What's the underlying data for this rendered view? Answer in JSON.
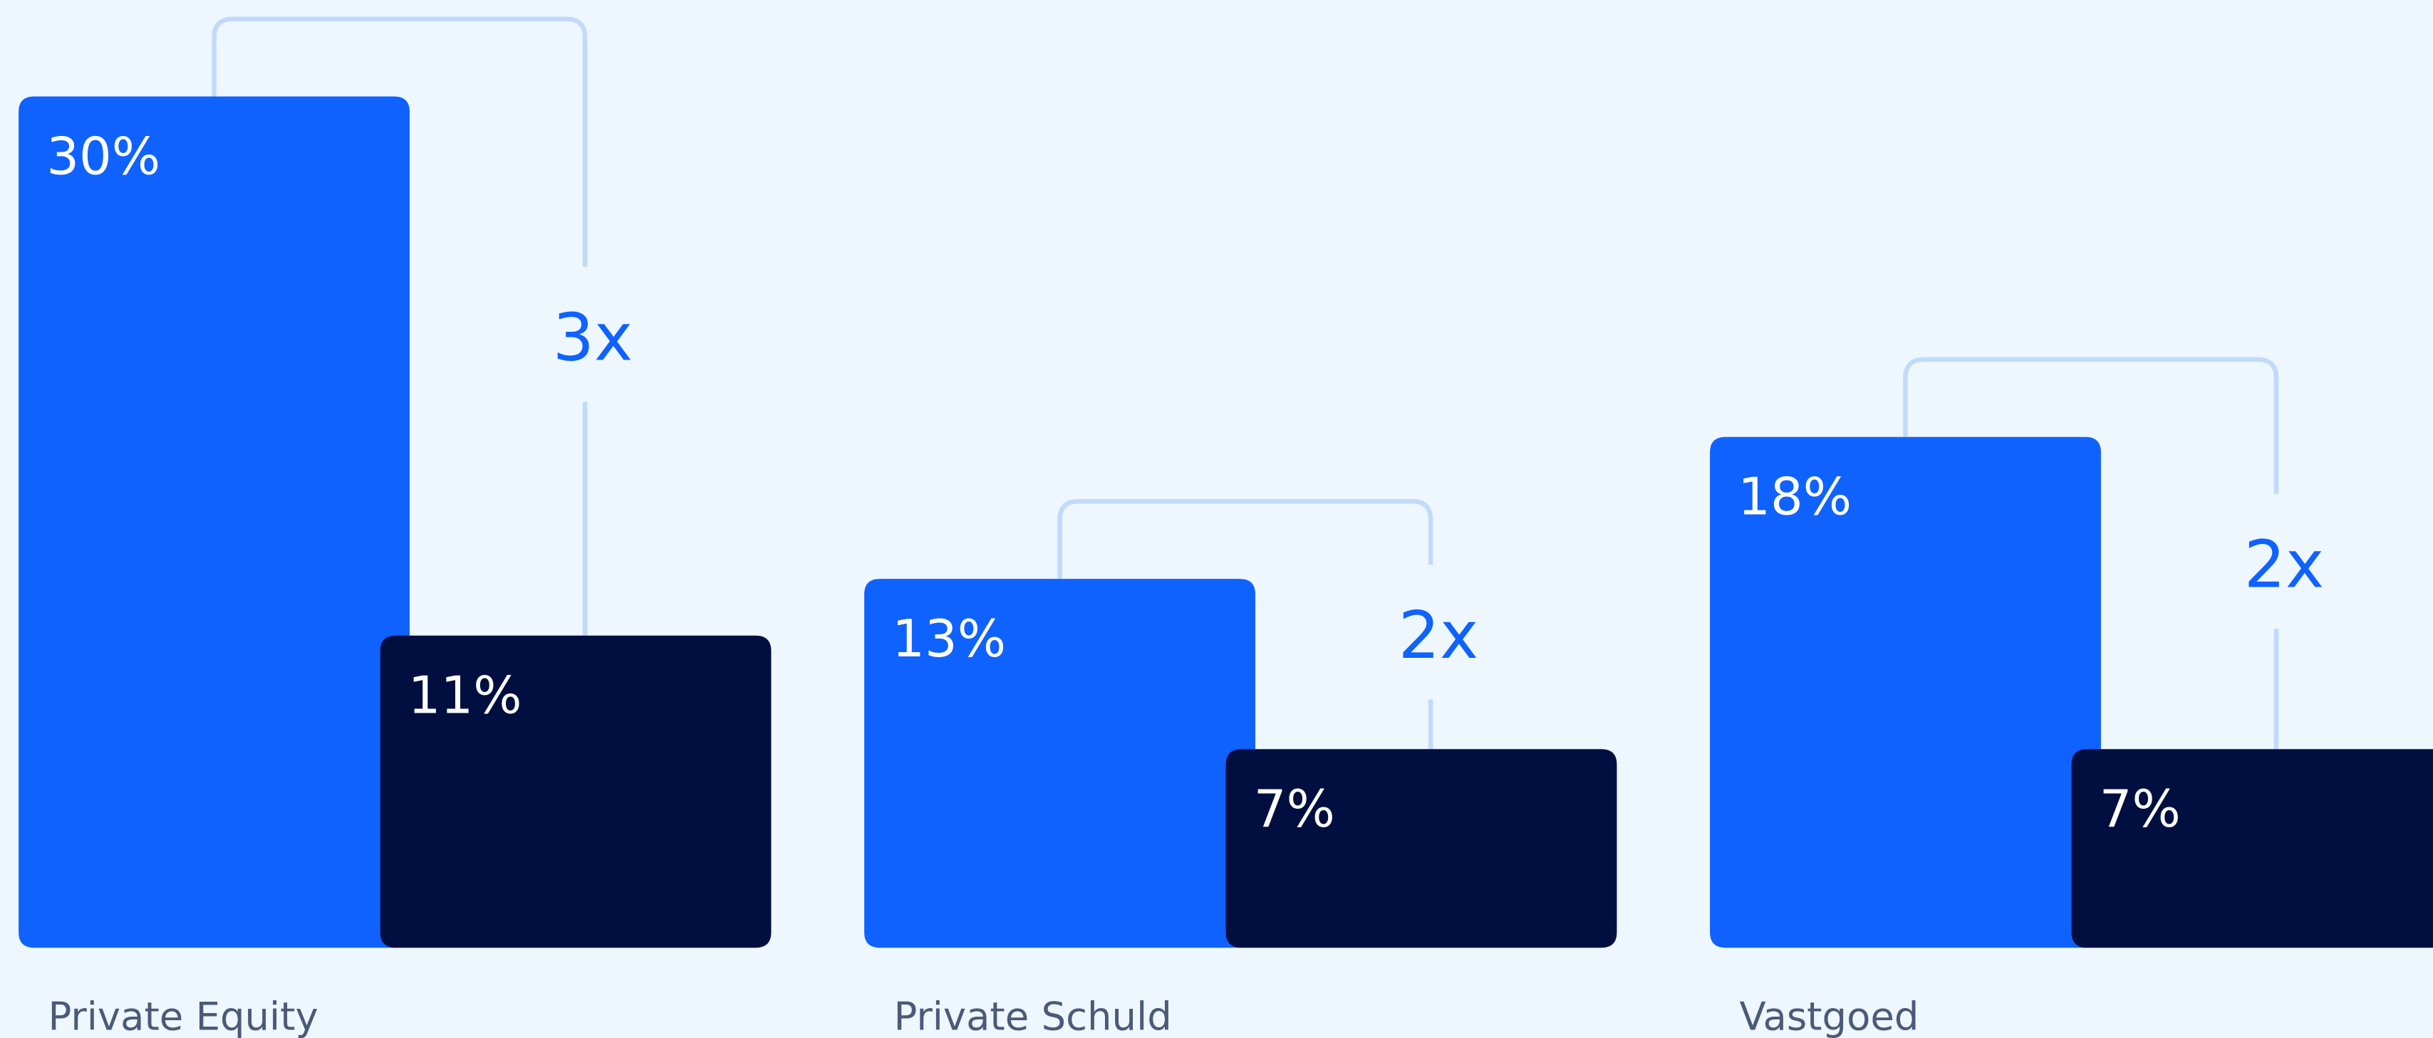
{
  "chart_data": {
    "type": "bar",
    "categories": [
      "Private Equity",
      "Private Schuld",
      "Vastgoed"
    ],
    "series": [
      {
        "color": "#0f62fe",
        "values": [
          30,
          13,
          18
        ],
        "value_labels": [
          "30%",
          "13%",
          "18%"
        ]
      },
      {
        "color": "#000f3f",
        "values": [
          11,
          7,
          7
        ],
        "value_labels": [
          "11%",
          "7%",
          "7%"
        ]
      }
    ],
    "annotations": [
      "3x",
      "2x",
      "2x"
    ]
  }
}
